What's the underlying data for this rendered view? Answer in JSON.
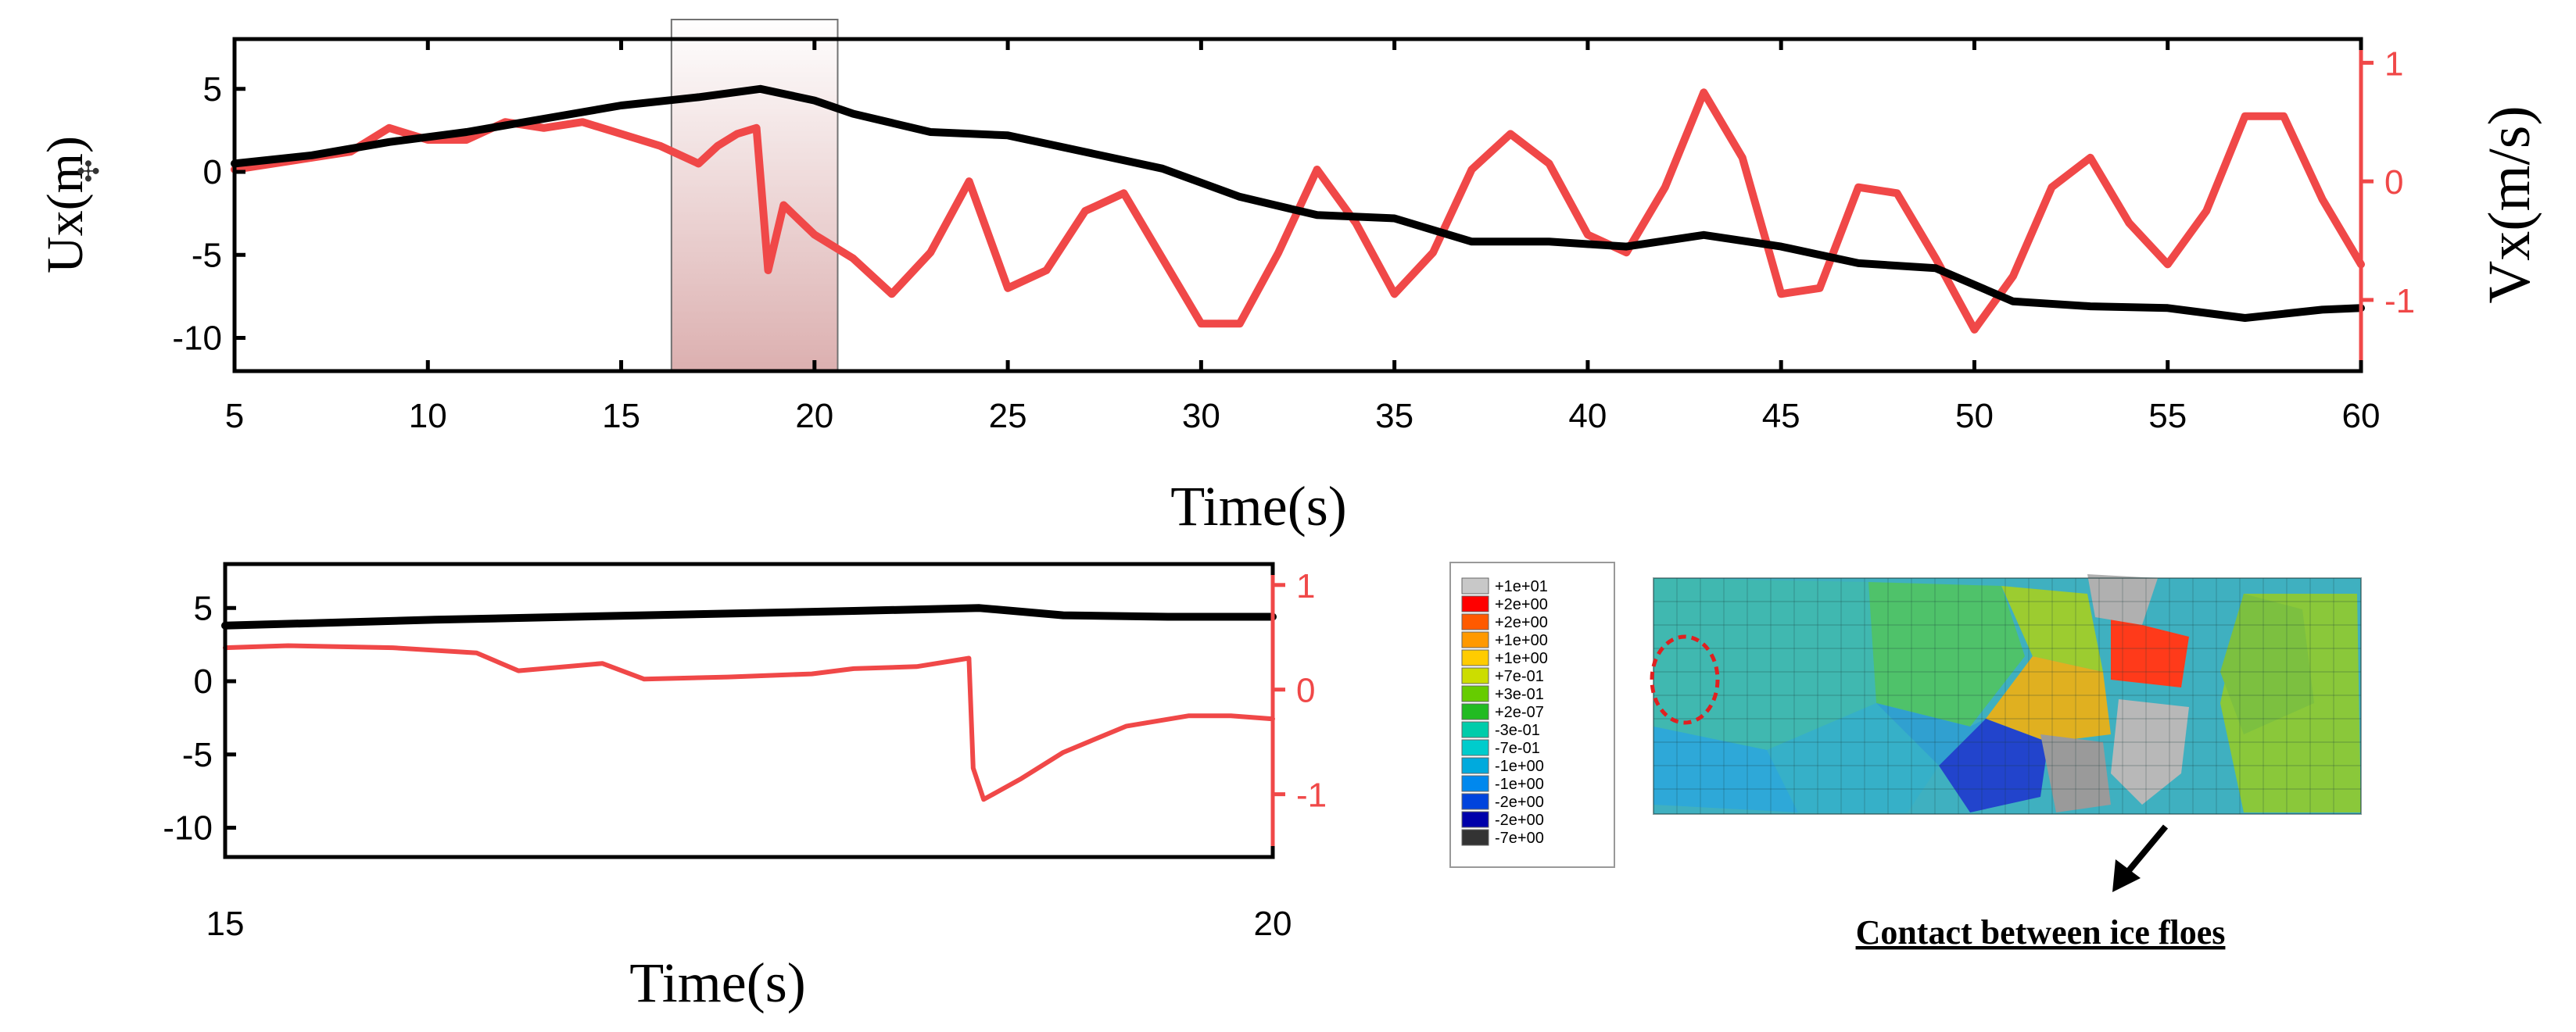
{
  "chart_data": [
    {
      "type": "line",
      "xlabel": "Time(s)",
      "ylabel_left": "Ux(m)",
      "ylabel_right": "Vx(m/s)",
      "xlim": [
        5,
        60
      ],
      "ylim_left": [
        -12,
        8
      ],
      "ylim_right": [
        -1.6,
        1.2
      ],
      "x_ticks": [
        5,
        10,
        15,
        20,
        25,
        30,
        35,
        40,
        45,
        50,
        55,
        60
      ],
      "y_ticks_left": [
        5,
        0,
        -5,
        -10
      ],
      "y_ticks_right": [
        1,
        0,
        -1
      ],
      "highlight_window": [
        16.3,
        20.6
      ],
      "grid": false,
      "series": [
        {
          "color": "#000000",
          "axis": "left",
          "x": [
            5,
            7,
            9,
            11,
            13,
            15,
            17,
            18.6,
            20,
            21,
            23,
            25,
            27,
            29,
            31,
            33,
            35,
            37,
            39,
            41,
            43,
            45,
            47,
            49,
            51,
            53,
            55,
            57,
            59,
            60
          ],
          "y": [
            0.5,
            1.0,
            1.8,
            2.4,
            3.2,
            4.0,
            4.5,
            5.0,
            4.3,
            3.5,
            2.4,
            2.2,
            1.2,
            0.2,
            -1.5,
            -2.6,
            -2.8,
            -4.2,
            -4.2,
            -4.5,
            -3.8,
            -4.5,
            -5.5,
            -5.8,
            -7.8,
            -8.1,
            -8.2,
            -8.8,
            -8.3,
            -8.2
          ]
        },
        {
          "color": "#f04848",
          "axis": "right",
          "x": [
            5,
            6,
            7,
            8,
            9,
            10,
            11,
            12,
            13,
            14,
            15,
            16,
            17,
            17.5,
            18,
            18.5,
            18.8,
            19.2,
            20,
            21,
            22,
            23,
            24,
            25,
            26,
            27,
            28,
            29,
            30,
            31,
            32,
            33,
            34,
            35,
            36,
            37,
            38,
            39,
            40,
            41,
            42,
            43,
            44,
            45,
            46,
            47,
            48,
            49,
            50,
            51,
            52,
            53,
            54,
            55,
            56,
            57,
            58,
            59,
            60
          ],
          "y": [
            0.1,
            0.15,
            0.2,
            0.25,
            0.45,
            0.35,
            0.35,
            0.5,
            0.45,
            0.5,
            0.4,
            0.3,
            0.15,
            0.3,
            0.4,
            0.45,
            -0.75,
            -0.2,
            -0.45,
            -0.65,
            -0.95,
            -0.6,
            0.0,
            -0.9,
            -0.75,
            -0.25,
            -0.1,
            -0.65,
            -1.2,
            -1.2,
            -0.6,
            0.1,
            -0.35,
            -0.95,
            -0.6,
            0.1,
            0.4,
            0.15,
            -0.45,
            -0.6,
            -0.05,
            0.75,
            0.2,
            -0.95,
            -0.9,
            -0.05,
            -0.1,
            -0.65,
            -1.25,
            -0.8,
            -0.05,
            0.2,
            -0.35,
            -0.7,
            -0.25,
            0.55,
            0.55,
            -0.15,
            -0.7
          ]
        }
      ]
    },
    {
      "type": "line",
      "xlabel": "Time(s)",
      "xlim": [
        15,
        20
      ],
      "ylim_left": [
        -12,
        8
      ],
      "ylim_right": [
        -1.6,
        1.2
      ],
      "x_ticks": [
        15,
        20
      ],
      "y_ticks_left": [
        5,
        0,
        -5,
        -10
      ],
      "y_ticks_right": [
        1,
        0,
        -1
      ],
      "grid": false,
      "series": [
        {
          "color": "#000000",
          "axis": "left",
          "x": [
            15,
            16,
            17,
            18,
            18.6,
            19,
            19.5,
            20
          ],
          "y": [
            3.8,
            4.2,
            4.5,
            4.8,
            5.0,
            4.5,
            4.4,
            4.4
          ]
        },
        {
          "color": "#f04848",
          "axis": "right",
          "x": [
            15,
            15.3,
            15.8,
            16.2,
            16.4,
            16.8,
            17.0,
            17.4,
            17.8,
            18.0,
            18.3,
            18.55,
            18.57,
            18.62,
            18.8,
            19.0,
            19.3,
            19.6,
            19.8,
            20
          ],
          "y": [
            0.4,
            0.42,
            0.4,
            0.35,
            0.18,
            0.25,
            0.1,
            0.12,
            0.15,
            0.2,
            0.22,
            0.3,
            -0.75,
            -1.05,
            -0.85,
            -0.6,
            -0.35,
            -0.25,
            -0.25,
            -0.28
          ]
        }
      ]
    }
  ],
  "contour": {
    "legend_values": [
      "+1e+01",
      "+2e+00",
      "+2e+00",
      "+1e+00",
      "+1e+00",
      "+7e-01",
      "+3e-01",
      "+2e-07",
      "-3e-01",
      "-7e-01",
      "-1e+00",
      "-1e+00",
      "-2e+00",
      "-2e+00",
      "-7e+00"
    ],
    "legend_colors": [
      "#c8c8c8",
      "#ff0000",
      "#ff5a00",
      "#ff9900",
      "#ffcc00",
      "#ccdd00",
      "#66cc00",
      "#22bb22",
      "#00ccaa",
      "#00cccc",
      "#00aadd",
      "#0088ee",
      "#0044dd",
      "#0000aa",
      "#333333"
    ],
    "caption": "Contact between ice floes"
  }
}
